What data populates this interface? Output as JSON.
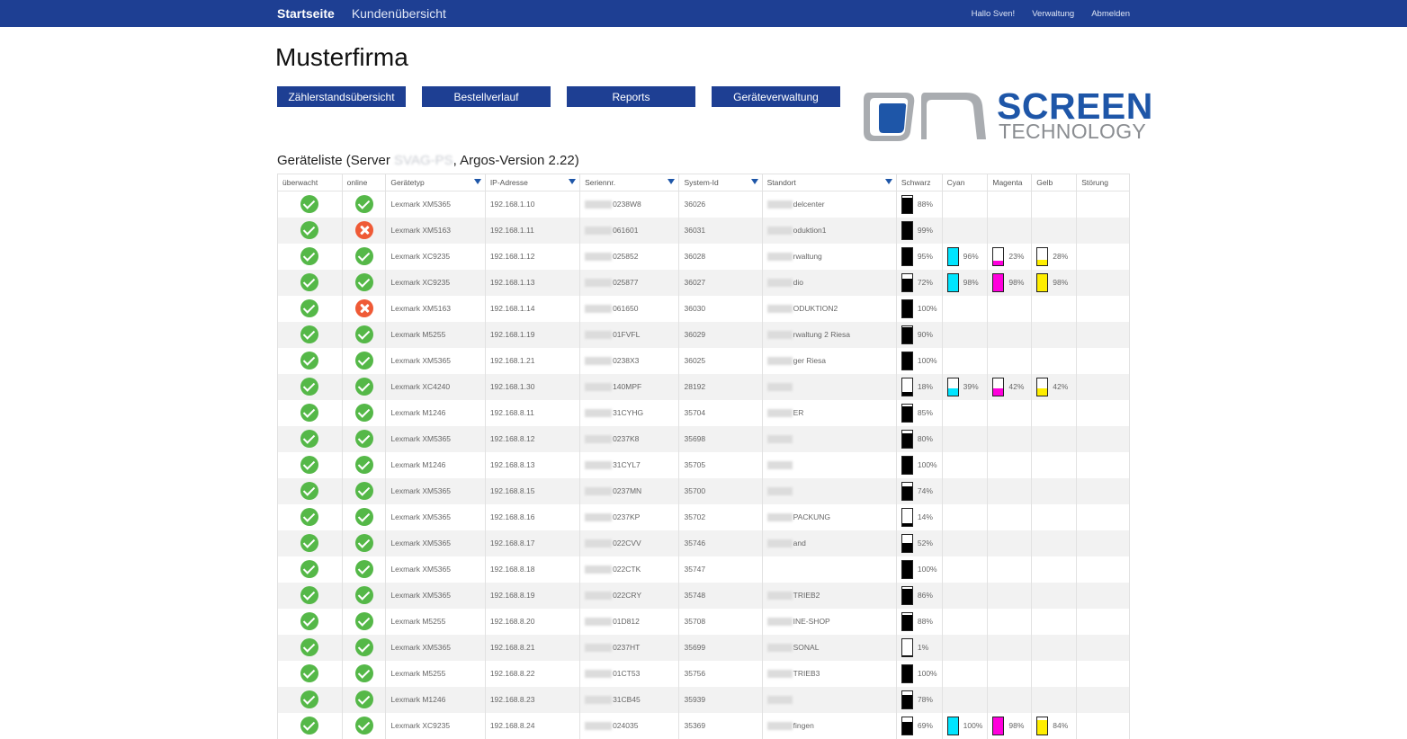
{
  "nav": {
    "brand": "Startseite",
    "link1": "Kundenübersicht",
    "user": "Hallo Sven!",
    "admin": "Verwaltung",
    "logout": "Abmelden"
  },
  "page": {
    "title": "Musterfirma"
  },
  "buttons": [
    "Zählerstandsübersicht",
    "Bestellverlauf",
    "Reports",
    "Geräteverwaltung"
  ],
  "logo": {
    "line1": "SCREEN",
    "line2": "TECHNOLOGY"
  },
  "list": {
    "prefix": "Geräteliste (Server ",
    "server": "SVAG-PS",
    "suffix": ", Argos-Version 2.22)"
  },
  "colors": {
    "nav": "#1e3f93",
    "ok": "#55b848",
    "error": "#ef5a36",
    "black": "#000000",
    "cyan": "#00e5ff",
    "magenta": "#ff00dc",
    "yellow": "#ffee00"
  },
  "columns": [
    "überwacht",
    "online",
    "Gerätetyp",
    "IP-Adresse",
    "Seriennr.",
    "System-Id",
    "Standort",
    "Schwarz",
    "Cyan",
    "Magenta",
    "Gelb",
    "Störung"
  ],
  "rows": [
    {
      "online": true,
      "type": "Lexmark XM5365",
      "ip": "192.168.1.10",
      "serial": "0238W8",
      "sysid": "36026",
      "loc": "delcenter",
      "k": 88
    },
    {
      "online": false,
      "type": "Lexmark XM5163",
      "ip": "192.168.1.11",
      "serial": "061601",
      "sysid": "36031",
      "loc": "oduktion1",
      "k": 99
    },
    {
      "online": true,
      "type": "Lexmark XC9235",
      "ip": "192.168.1.12",
      "serial": "025852",
      "sysid": "36028",
      "loc": "rwaltung",
      "k": 95,
      "c": 96,
      "m": 23,
      "y": 28
    },
    {
      "online": true,
      "type": "Lexmark XC9235",
      "ip": "192.168.1.13",
      "serial": "025877",
      "sysid": "36027",
      "loc": "dio",
      "k": 72,
      "c": 98,
      "m": 98,
      "y": 98
    },
    {
      "online": false,
      "type": "Lexmark XM5163",
      "ip": "192.168.1.14",
      "serial": "061650",
      "sysid": "36030",
      "loc": "ODUKTION2",
      "k": 100
    },
    {
      "online": true,
      "type": "Lexmark M5255",
      "ip": "192.168.1.19",
      "serial": "01FVFL",
      "sysid": "36029",
      "loc": "rwaltung 2 Riesa",
      "k": 90
    },
    {
      "online": true,
      "type": "Lexmark XM5365",
      "ip": "192.168.1.21",
      "serial": "0238X3",
      "sysid": "36025",
      "loc": "ger Riesa",
      "k": 100
    },
    {
      "online": true,
      "type": "Lexmark XC4240",
      "ip": "192.168.1.30",
      "serial": "140MPF",
      "sysid": "28192",
      "loc": "",
      "k": 18,
      "c": 39,
      "m": 42,
      "y": 42
    },
    {
      "online": true,
      "type": "Lexmark M1246",
      "ip": "192.168.8.11",
      "serial": "31CYHG",
      "sysid": "35704",
      "loc": "ER",
      "k": 85
    },
    {
      "online": true,
      "type": "Lexmark XM5365",
      "ip": "192.168.8.12",
      "serial": "0237K8",
      "sysid": "35698",
      "loc": "",
      "k": 80
    },
    {
      "online": true,
      "type": "Lexmark M1246",
      "ip": "192.168.8.13",
      "serial": "31CYL7",
      "sysid": "35705",
      "loc": "",
      "k": 100
    },
    {
      "online": true,
      "type": "Lexmark XM5365",
      "ip": "192.168.8.15",
      "serial": "0237MN",
      "sysid": "35700",
      "loc": "",
      "k": 74
    },
    {
      "online": true,
      "type": "Lexmark XM5365",
      "ip": "192.168.8.16",
      "serial": "0237KP",
      "sysid": "35702",
      "loc": "PACKUNG",
      "k": 14
    },
    {
      "online": true,
      "type": "Lexmark XM5365",
      "ip": "192.168.8.17",
      "serial": "022CVV",
      "sysid": "35746",
      "loc": "and",
      "k": 52
    },
    {
      "online": true,
      "type": "Lexmark XM5365",
      "ip": "192.168.8.18",
      "serial": "022CTK",
      "sysid": "35747",
      "loc": "",
      "noloc": true,
      "k": 100
    },
    {
      "online": true,
      "type": "Lexmark XM5365",
      "ip": "192.168.8.19",
      "serial": "022CRY",
      "sysid": "35748",
      "loc": "TRIEB2",
      "k": 86
    },
    {
      "online": true,
      "type": "Lexmark M5255",
      "ip": "192.168.8.20",
      "serial": "01D812",
      "sysid": "35708",
      "loc": "INE-SHOP",
      "k": 88
    },
    {
      "online": true,
      "type": "Lexmark XM5365",
      "ip": "192.168.8.21",
      "serial": "0237HT",
      "sysid": "35699",
      "loc": "SONAL",
      "k": 1
    },
    {
      "online": true,
      "type": "Lexmark M5255",
      "ip": "192.168.8.22",
      "serial": "01CT53",
      "sysid": "35756",
      "loc": "TRIEB3",
      "k": 100
    },
    {
      "online": true,
      "type": "Lexmark M1246",
      "ip": "192.168.8.23",
      "serial": "31CB45",
      "sysid": "35939",
      "loc": "",
      "k": 78
    },
    {
      "online": true,
      "type": "Lexmark XC9235",
      "ip": "192.168.8.24",
      "serial": "024035",
      "sysid": "35369",
      "loc": "fingen",
      "k": 69,
      "c": 100,
      "m": 98,
      "y": 84
    }
  ]
}
